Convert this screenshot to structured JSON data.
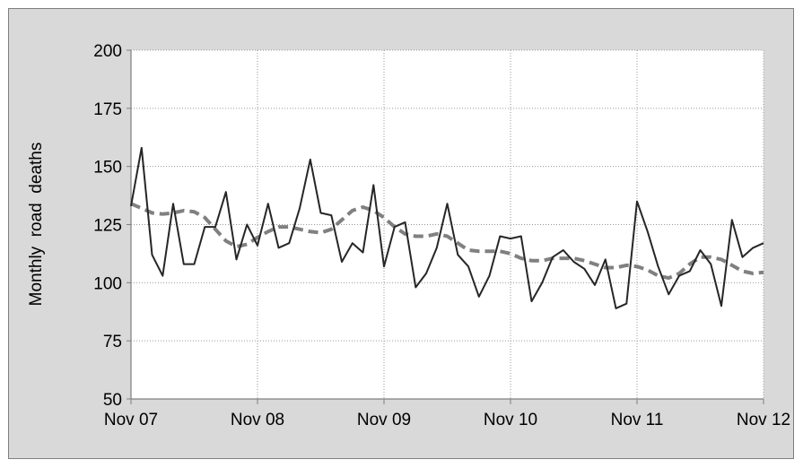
{
  "chart_data": {
    "type": "line",
    "title": "",
    "xlabel": "",
    "ylabel": "Monthly  road  deaths",
    "ylim": [
      50,
      200
    ],
    "yticks": [
      50,
      75,
      100,
      125,
      150,
      175,
      200
    ],
    "xticks": [
      "Nov 07",
      "Nov 08",
      "Nov 09",
      "Nov 10",
      "Nov 11",
      "Nov 12"
    ],
    "grid": "dotted",
    "legend": "none",
    "x_months": 61,
    "series": [
      {
        "style": "solid",
        "color": "#262626",
        "values": [
          133,
          158,
          112,
          103,
          134,
          108,
          108,
          124,
          124,
          139,
          110,
          125,
          116,
          134,
          115,
          117,
          132,
          153,
          130,
          129,
          109,
          117,
          113,
          142,
          107,
          124,
          126,
          98,
          104,
          115,
          134,
          112,
          107,
          94,
          103,
          120,
          119,
          120,
          92,
          100,
          111,
          114,
          109,
          106,
          99,
          110,
          89,
          91,
          135,
          122,
          107,
          95,
          103,
          105,
          114,
          108,
          90,
          127,
          111,
          115,
          117
        ]
      },
      {
        "style": "dashed",
        "color": "#808080",
        "values": [
          134,
          132,
          130,
          129.5,
          130,
          131,
          130.5,
          128,
          123,
          118,
          115.5,
          116.5,
          119.5,
          122,
          124,
          124,
          123,
          122,
          121.5,
          123,
          127,
          131,
          132.5,
          131,
          128,
          124,
          121,
          120,
          120,
          121,
          120,
          117,
          114,
          113.5,
          113.5,
          113.5,
          112.5,
          110.5,
          109.5,
          109.5,
          110.5,
          110.5,
          110.5,
          109.5,
          108,
          106.5,
          106.5,
          107.5,
          107,
          105.5,
          103,
          102,
          104,
          108,
          111,
          111,
          110,
          107.5,
          105,
          104,
          104.5
        ]
      }
    ]
  }
}
